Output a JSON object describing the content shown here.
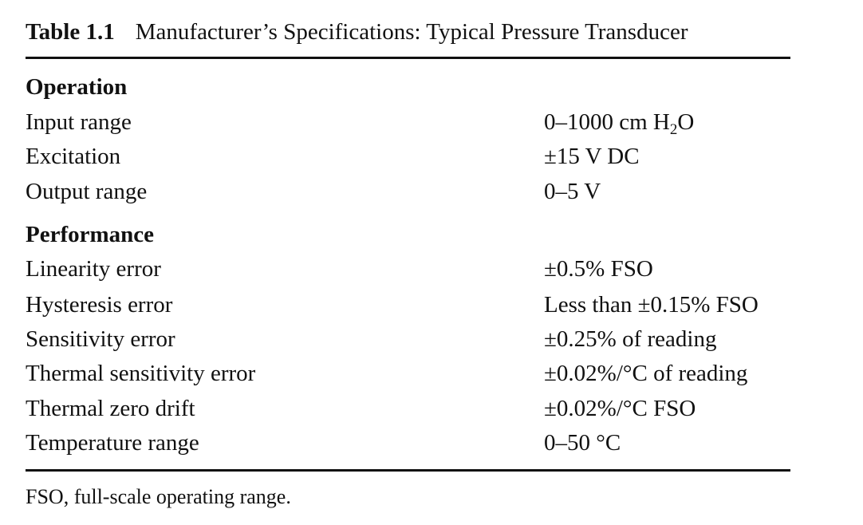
{
  "caption": {
    "number": "Table 1.1",
    "title": "Manufacturer’s Specifications: Typical Pressure Transducer"
  },
  "sections": [
    {
      "heading": "Operation",
      "rows": [
        {
          "param": "Input range",
          "value_pre": "0–1000 cm H",
          "value_sub": "2",
          "value_post": "O"
        },
        {
          "param": "Excitation",
          "value": "±15 V DC"
        },
        {
          "param": "Output range",
          "value": "0–5 V"
        }
      ]
    },
    {
      "heading": "Performance",
      "rows": [
        {
          "param": "Linearity error",
          "value": "±0.5% FSO"
        },
        {
          "param": "Hysteresis error",
          "value": "Less than ±0.15% FSO"
        },
        {
          "param": "Sensitivity error",
          "value": "±0.25% of reading"
        },
        {
          "param": "Thermal sensitivity error",
          "value": "±0.02%/°C of reading"
        },
        {
          "param": "Thermal zero drift",
          "value": "±0.02%/°C FSO"
        },
        {
          "param": "Temperature range",
          "value": "0–50 °C"
        }
      ]
    }
  ],
  "footnote": "FSO, full-scale operating range."
}
